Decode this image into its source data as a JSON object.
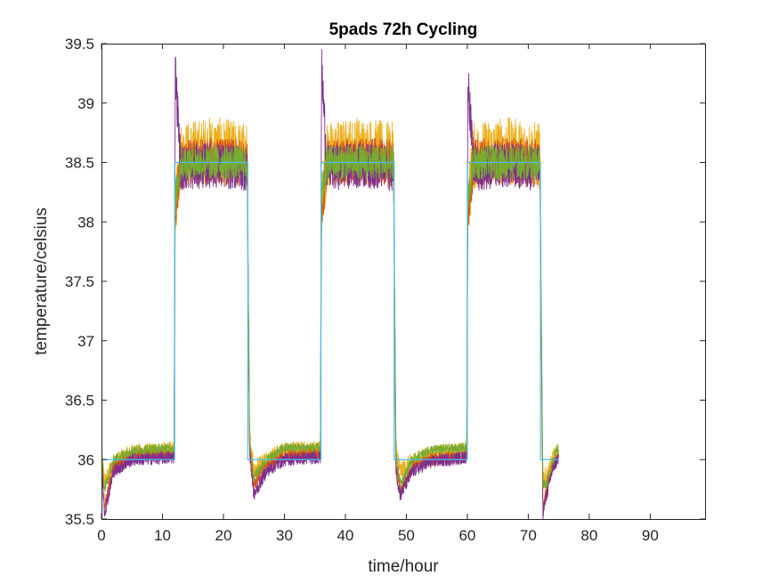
{
  "chart_data": {
    "type": "line",
    "title": "5pads 72h Cycling",
    "xlabel": "time/hour",
    "ylabel": "temperature/celsius",
    "xlim": [
      0,
      99
    ],
    "ylim": [
      35.5,
      39.5
    ],
    "xticks": [
      0,
      10,
      20,
      30,
      40,
      50,
      60,
      70,
      80,
      90
    ],
    "yticks": [
      35.5,
      36,
      36.5,
      37,
      37.5,
      38,
      38.5,
      39,
      39.5
    ],
    "xtick_labels": [
      "0",
      "10",
      "20",
      "30",
      "40",
      "50",
      "60",
      "70",
      "80",
      "90"
    ],
    "ytick_labels": [
      "35.5",
      "36",
      "36.5",
      "37",
      "37.5",
      "38",
      "38.5",
      "39",
      "39.5"
    ],
    "grid": false,
    "legend": "none",
    "colors": [
      "#EDB120",
      "#D95319",
      "#7E2F8E",
      "#77AC30",
      "#4DBEEE"
    ],
    "series": [
      {
        "color": "#EDB120",
        "x": [
          0,
          0.5,
          2,
          5,
          11.9,
          12.1,
          13,
          18,
          23.9,
          24.3,
          25,
          27,
          30,
          35.9,
          36.1,
          37,
          42,
          47.9,
          48.3,
          49,
          51,
          54,
          59.9,
          60.1,
          61,
          66,
          71.9,
          72.4,
          73,
          74,
          75
        ],
        "y": [
          36.05,
          35.8,
          35.97,
          36.05,
          36.07,
          38.15,
          38.55,
          38.6,
          38.55,
          36.2,
          35.92,
          36.0,
          36.07,
          36.08,
          38.15,
          38.55,
          38.6,
          38.55,
          36.1,
          35.9,
          35.98,
          36.04,
          36.07,
          38.15,
          38.55,
          38.6,
          38.55,
          35.85,
          35.85,
          36.0,
          36.08
        ]
      },
      {
        "color": "#D95319",
        "x": [
          0,
          0.5,
          2,
          5,
          11.9,
          12.1,
          13,
          18,
          23.9,
          24.3,
          25,
          27,
          30,
          35.9,
          36.1,
          37,
          42,
          47.9,
          48.3,
          49,
          51,
          54,
          59.9,
          60.1,
          61,
          66,
          71.9,
          72.4,
          73,
          74,
          75
        ],
        "y": [
          36.0,
          35.6,
          35.95,
          36.03,
          36.04,
          38.1,
          38.5,
          38.52,
          38.5,
          36.1,
          35.8,
          35.95,
          36.03,
          36.05,
          38.1,
          38.5,
          38.52,
          38.5,
          35.95,
          35.75,
          35.93,
          36.0,
          36.04,
          38.1,
          38.5,
          38.52,
          38.5,
          35.6,
          35.75,
          35.95,
          36.05
        ]
      },
      {
        "color": "#7E2F8E",
        "x": [
          0,
          0.5,
          2,
          5,
          11.9,
          12.1,
          13,
          18,
          23.9,
          24.3,
          25,
          27,
          30,
          35.9,
          36.1,
          37,
          42,
          47.9,
          48.3,
          49,
          51,
          54,
          59.9,
          60.1,
          61,
          66,
          71.9,
          72.4,
          73,
          74,
          75
        ],
        "y": [
          35.98,
          35.55,
          35.9,
          36.0,
          36.02,
          39.3,
          38.45,
          38.48,
          38.45,
          36.05,
          35.7,
          35.9,
          36.0,
          36.02,
          39.3,
          38.45,
          38.48,
          38.45,
          35.9,
          35.7,
          35.9,
          35.98,
          36.02,
          39.22,
          38.45,
          38.48,
          38.45,
          35.55,
          35.7,
          35.92,
          36.02
        ]
      },
      {
        "color": "#77AC30",
        "x": [
          0,
          0.5,
          2,
          5,
          11.9,
          12.1,
          13,
          18,
          23.9,
          24.3,
          25,
          27,
          30,
          35.9,
          36.1,
          37,
          42,
          47.9,
          48.3,
          49,
          51,
          54,
          59.9,
          60.1,
          61,
          66,
          71.9,
          72.4,
          73,
          74,
          75
        ],
        "y": [
          36.08,
          35.75,
          36.0,
          36.08,
          36.1,
          38.2,
          38.5,
          38.5,
          38.5,
          36.15,
          35.85,
          36.0,
          36.1,
          36.1,
          38.2,
          38.5,
          38.5,
          38.5,
          36.05,
          35.8,
          36.0,
          36.08,
          36.1,
          38.2,
          38.5,
          38.5,
          38.5,
          35.8,
          35.8,
          36.0,
          36.1
        ]
      },
      {
        "color": "#4DBEEE",
        "x": [
          0,
          12,
          12,
          24,
          24,
          36,
          36,
          48,
          48,
          60,
          60,
          72,
          72,
          75
        ],
        "y": [
          36,
          36,
          38.5,
          38.5,
          36,
          36,
          38.5,
          38.5,
          36,
          36,
          38.5,
          38.5,
          36,
          36
        ]
      }
    ]
  }
}
